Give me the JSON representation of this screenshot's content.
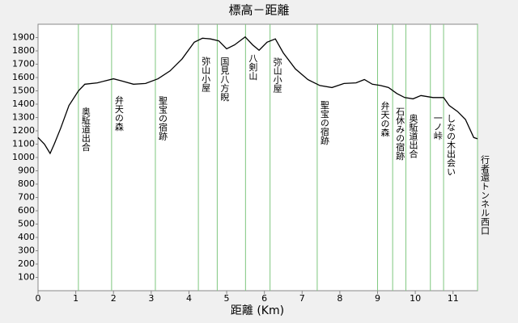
{
  "chart_data": {
    "type": "line",
    "title": "標高－距離",
    "xlabel": "距離 (Km)",
    "x": [
      0,
      0.17,
      0.32,
      0.43,
      0.6,
      0.82,
      1.07,
      1.24,
      1.57,
      1.78,
      2.0,
      2.21,
      2.53,
      2.85,
      3.18,
      3.5,
      3.82,
      4.14,
      4.36,
      4.57,
      4.79,
      5.0,
      5.21,
      5.49,
      5.69,
      5.86,
      6.07,
      6.29,
      6.5,
      6.82,
      7.15,
      7.47,
      7.79,
      8.11,
      8.43,
      8.65,
      8.86,
      9.08,
      9.29,
      9.51,
      9.72,
      9.94,
      10.15,
      10.47,
      10.75,
      10.9,
      11.12,
      11.33,
      11.55,
      11.65
    ],
    "values": [
      1150,
      1100,
      1030,
      1100,
      1220,
      1390,
      1500,
      1550,
      1560,
      1575,
      1590,
      1575,
      1550,
      1555,
      1590,
      1650,
      1740,
      1865,
      1895,
      1890,
      1875,
      1815,
      1845,
      1905,
      1845,
      1805,
      1865,
      1890,
      1785,
      1665,
      1585,
      1540,
      1525,
      1555,
      1560,
      1585,
      1550,
      1540,
      1525,
      1480,
      1450,
      1440,
      1465,
      1450,
      1450,
      1390,
      1345,
      1285,
      1150,
      1140
    ],
    "color": "#000000",
    "annotations": [
      {
        "x": 1.07,
        "label": "奥駈道出合"
      },
      {
        "x": 1.95,
        "label": "弁天の森"
      },
      {
        "x": 3.11,
        "label": "聖宝の宿跡"
      },
      {
        "x": 4.25,
        "label": "弥山小屋"
      },
      {
        "x": 4.75,
        "label": "国見八方睨"
      },
      {
        "x": 5.5,
        "label": "八剣山"
      },
      {
        "x": 6.15,
        "label": "弥山小屋"
      },
      {
        "x": 7.4,
        "label": "聖宝の宿跡"
      },
      {
        "x": 9.0,
        "label": "弁天の森"
      },
      {
        "x": 9.4,
        "label": "石休みの宿跡"
      },
      {
        "x": 9.75,
        "label": "奥駈道出合"
      },
      {
        "x": 10.4,
        "label": "一ノ峠"
      },
      {
        "x": 10.75,
        "label": "しなの木出会い"
      },
      {
        "x": 11.65,
        "label": "行者還トンネル西口"
      }
    ],
    "annotation_color": "#7fc77f",
    "xlim": [
      0,
      11.65
    ],
    "ylim": [
      0,
      2000
    ],
    "xticks": [
      0,
      1,
      2,
      3,
      4,
      5,
      6,
      7,
      8,
      9,
      10,
      11
    ],
    "yticks": [
      100,
      200,
      300,
      400,
      500,
      600,
      700,
      800,
      900,
      1000,
      1100,
      1200,
      1300,
      1400,
      1500,
      1600,
      1700,
      1800,
      1900
    ]
  }
}
